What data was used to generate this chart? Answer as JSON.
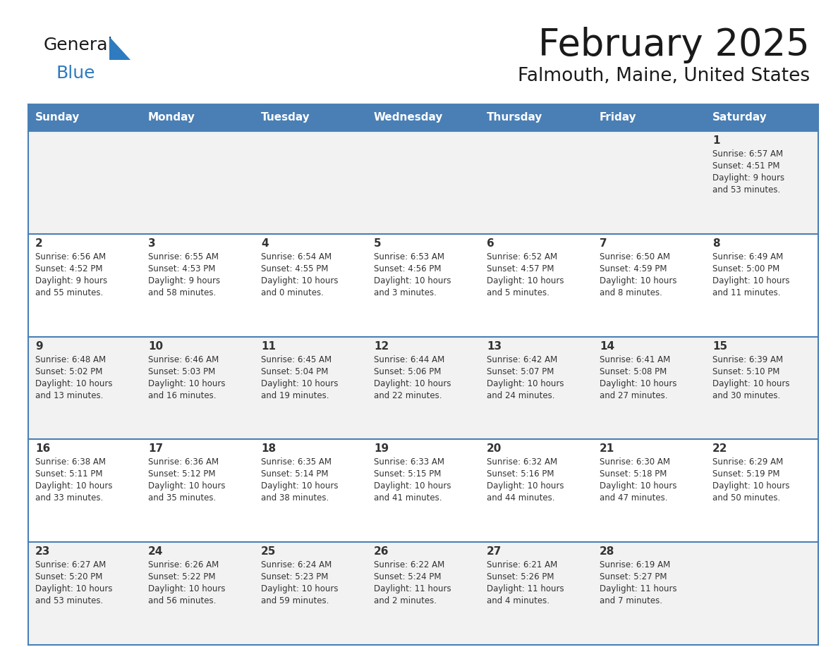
{
  "title": "February 2025",
  "subtitle": "Falmouth, Maine, United States",
  "header_bg": "#4a7fb5",
  "header_text_color": "#ffffff",
  "day_names": [
    "Sunday",
    "Monday",
    "Tuesday",
    "Wednesday",
    "Thursday",
    "Friday",
    "Saturday"
  ],
  "odd_row_bg": "#f2f2f2",
  "even_row_bg": "#ffffff",
  "line_color": "#4a7fb5",
  "text_color": "#333333",
  "logo_general_color": "#1a1a1a",
  "logo_blue_color": "#2e7bbf",
  "calendar_data": [
    [
      {
        "day": "",
        "lines": []
      },
      {
        "day": "",
        "lines": []
      },
      {
        "day": "",
        "lines": []
      },
      {
        "day": "",
        "lines": []
      },
      {
        "day": "",
        "lines": []
      },
      {
        "day": "",
        "lines": []
      },
      {
        "day": "1",
        "lines": [
          "Sunrise: 6:57 AM",
          "Sunset: 4:51 PM",
          "Daylight: 9 hours",
          "and 53 minutes."
        ]
      }
    ],
    [
      {
        "day": "2",
        "lines": [
          "Sunrise: 6:56 AM",
          "Sunset: 4:52 PM",
          "Daylight: 9 hours",
          "and 55 minutes."
        ]
      },
      {
        "day": "3",
        "lines": [
          "Sunrise: 6:55 AM",
          "Sunset: 4:53 PM",
          "Daylight: 9 hours",
          "and 58 minutes."
        ]
      },
      {
        "day": "4",
        "lines": [
          "Sunrise: 6:54 AM",
          "Sunset: 4:55 PM",
          "Daylight: 10 hours",
          "and 0 minutes."
        ]
      },
      {
        "day": "5",
        "lines": [
          "Sunrise: 6:53 AM",
          "Sunset: 4:56 PM",
          "Daylight: 10 hours",
          "and 3 minutes."
        ]
      },
      {
        "day": "6",
        "lines": [
          "Sunrise: 6:52 AM",
          "Sunset: 4:57 PM",
          "Daylight: 10 hours",
          "and 5 minutes."
        ]
      },
      {
        "day": "7",
        "lines": [
          "Sunrise: 6:50 AM",
          "Sunset: 4:59 PM",
          "Daylight: 10 hours",
          "and 8 minutes."
        ]
      },
      {
        "day": "8",
        "lines": [
          "Sunrise: 6:49 AM",
          "Sunset: 5:00 PM",
          "Daylight: 10 hours",
          "and 11 minutes."
        ]
      }
    ],
    [
      {
        "day": "9",
        "lines": [
          "Sunrise: 6:48 AM",
          "Sunset: 5:02 PM",
          "Daylight: 10 hours",
          "and 13 minutes."
        ]
      },
      {
        "day": "10",
        "lines": [
          "Sunrise: 6:46 AM",
          "Sunset: 5:03 PM",
          "Daylight: 10 hours",
          "and 16 minutes."
        ]
      },
      {
        "day": "11",
        "lines": [
          "Sunrise: 6:45 AM",
          "Sunset: 5:04 PM",
          "Daylight: 10 hours",
          "and 19 minutes."
        ]
      },
      {
        "day": "12",
        "lines": [
          "Sunrise: 6:44 AM",
          "Sunset: 5:06 PM",
          "Daylight: 10 hours",
          "and 22 minutes."
        ]
      },
      {
        "day": "13",
        "lines": [
          "Sunrise: 6:42 AM",
          "Sunset: 5:07 PM",
          "Daylight: 10 hours",
          "and 24 minutes."
        ]
      },
      {
        "day": "14",
        "lines": [
          "Sunrise: 6:41 AM",
          "Sunset: 5:08 PM",
          "Daylight: 10 hours",
          "and 27 minutes."
        ]
      },
      {
        "day": "15",
        "lines": [
          "Sunrise: 6:39 AM",
          "Sunset: 5:10 PM",
          "Daylight: 10 hours",
          "and 30 minutes."
        ]
      }
    ],
    [
      {
        "day": "16",
        "lines": [
          "Sunrise: 6:38 AM",
          "Sunset: 5:11 PM",
          "Daylight: 10 hours",
          "and 33 minutes."
        ]
      },
      {
        "day": "17",
        "lines": [
          "Sunrise: 6:36 AM",
          "Sunset: 5:12 PM",
          "Daylight: 10 hours",
          "and 35 minutes."
        ]
      },
      {
        "day": "18",
        "lines": [
          "Sunrise: 6:35 AM",
          "Sunset: 5:14 PM",
          "Daylight: 10 hours",
          "and 38 minutes."
        ]
      },
      {
        "day": "19",
        "lines": [
          "Sunrise: 6:33 AM",
          "Sunset: 5:15 PM",
          "Daylight: 10 hours",
          "and 41 minutes."
        ]
      },
      {
        "day": "20",
        "lines": [
          "Sunrise: 6:32 AM",
          "Sunset: 5:16 PM",
          "Daylight: 10 hours",
          "and 44 minutes."
        ]
      },
      {
        "day": "21",
        "lines": [
          "Sunrise: 6:30 AM",
          "Sunset: 5:18 PM",
          "Daylight: 10 hours",
          "and 47 minutes."
        ]
      },
      {
        "day": "22",
        "lines": [
          "Sunrise: 6:29 AM",
          "Sunset: 5:19 PM",
          "Daylight: 10 hours",
          "and 50 minutes."
        ]
      }
    ],
    [
      {
        "day": "23",
        "lines": [
          "Sunrise: 6:27 AM",
          "Sunset: 5:20 PM",
          "Daylight: 10 hours",
          "and 53 minutes."
        ]
      },
      {
        "day": "24",
        "lines": [
          "Sunrise: 6:26 AM",
          "Sunset: 5:22 PM",
          "Daylight: 10 hours",
          "and 56 minutes."
        ]
      },
      {
        "day": "25",
        "lines": [
          "Sunrise: 6:24 AM",
          "Sunset: 5:23 PM",
          "Daylight: 10 hours",
          "and 59 minutes."
        ]
      },
      {
        "day": "26",
        "lines": [
          "Sunrise: 6:22 AM",
          "Sunset: 5:24 PM",
          "Daylight: 11 hours",
          "and 2 minutes."
        ]
      },
      {
        "day": "27",
        "lines": [
          "Sunrise: 6:21 AM",
          "Sunset: 5:26 PM",
          "Daylight: 11 hours",
          "and 4 minutes."
        ]
      },
      {
        "day": "28",
        "lines": [
          "Sunrise: 6:19 AM",
          "Sunset: 5:27 PM",
          "Daylight: 11 hours",
          "and 7 minutes."
        ]
      },
      {
        "day": "",
        "lines": []
      }
    ]
  ]
}
